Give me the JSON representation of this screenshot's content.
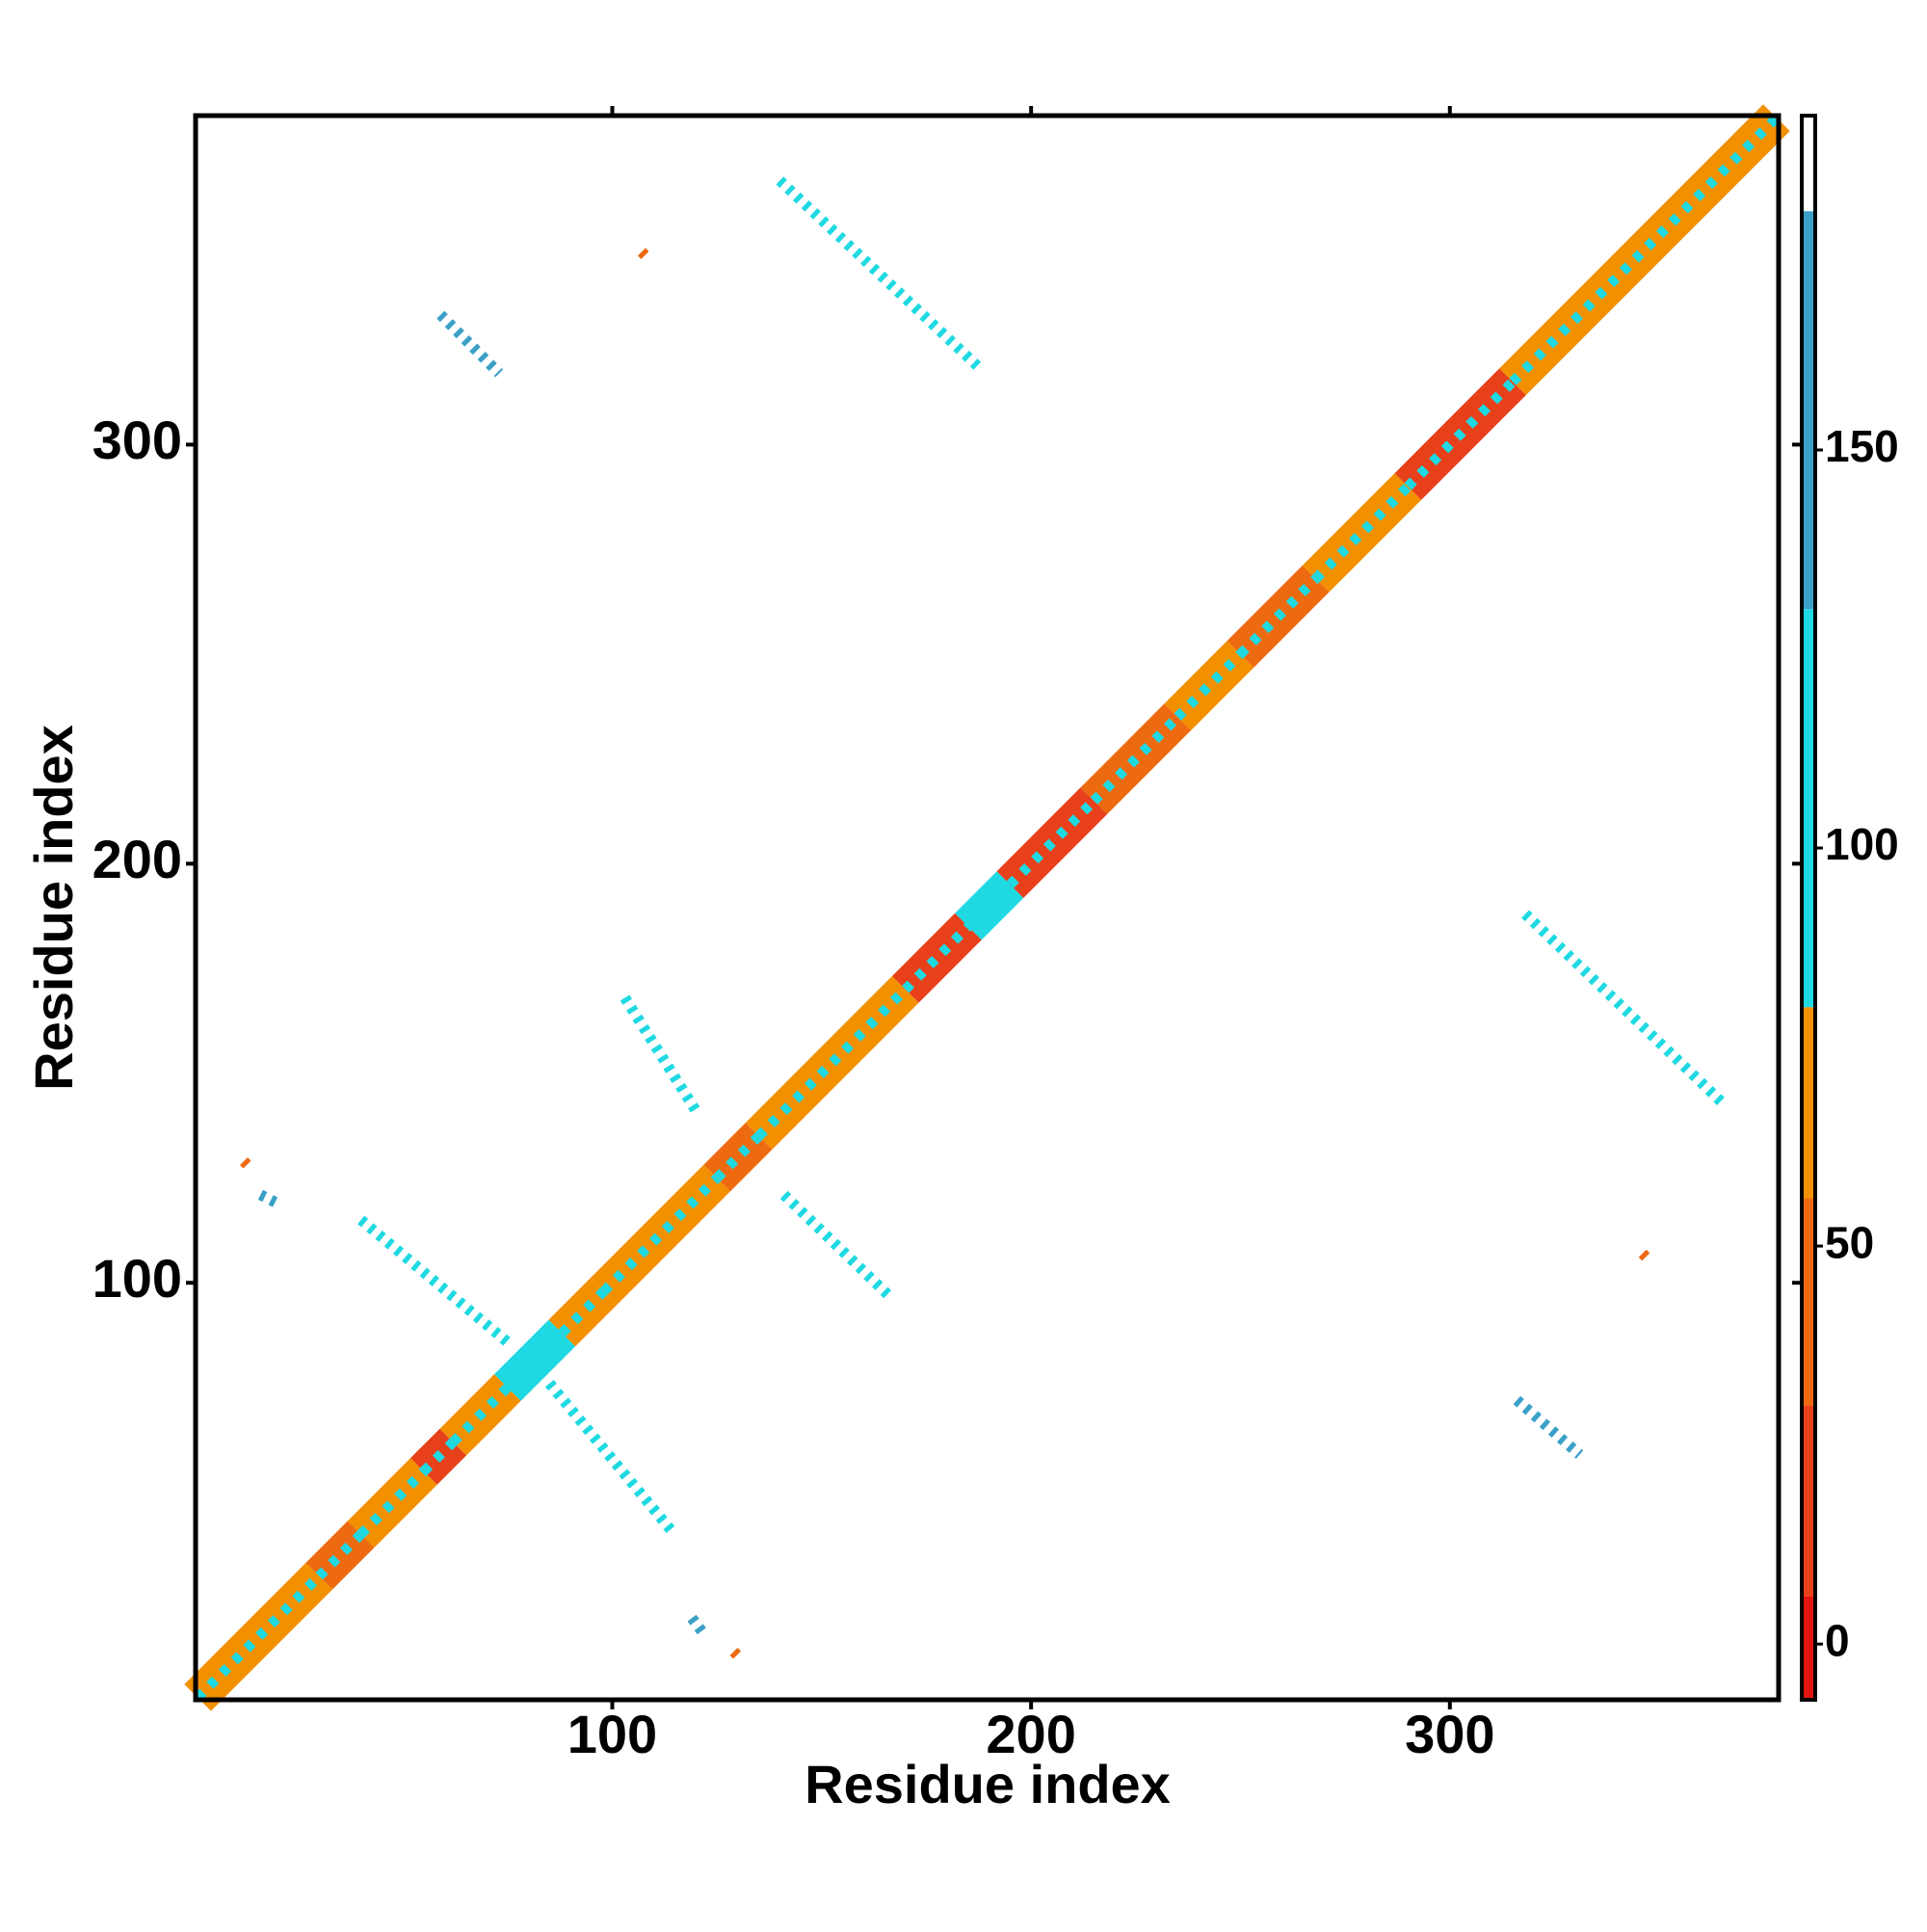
{
  "chart_data": {
    "type": "contact_map",
    "x_label": "Residue index",
    "y_label": "Residue index",
    "xlim": [
      0.5,
      378.5
    ],
    "ylim": [
      0.5,
      378.5
    ],
    "xticks": [
      100,
      200,
      300
    ],
    "yticks": [
      100,
      200,
      300
    ],
    "colorbar": {
      "lim": [
        -7,
        192
      ],
      "ticks": [
        0,
        50,
        100,
        150
      ],
      "bins": [
        -7,
        6,
        30,
        56,
        80,
        130,
        180,
        192
      ],
      "colors": [
        "#e0150e",
        "#e8401a",
        "#ee6a10",
        "#f29000",
        "#1fd9e2",
        "#3aa0c8",
        "#ffffff"
      ]
    },
    "diagonal": [
      {
        "from": 1,
        "to": 30,
        "value": 70
      },
      {
        "from": 30,
        "to": 40,
        "value": 40
      },
      {
        "from": 40,
        "to": 55,
        "value": 70
      },
      {
        "from": 55,
        "to": 62,
        "value": 20
      },
      {
        "from": 62,
        "to": 75,
        "value": 70
      },
      {
        "from": 75,
        "to": 88,
        "value": 100
      },
      {
        "from": 88,
        "to": 98,
        "value": 60
      },
      {
        "from": 98,
        "to": 125,
        "value": 70
      },
      {
        "from": 125,
        "to": 135,
        "value": 40
      },
      {
        "from": 135,
        "to": 170,
        "value": 70
      },
      {
        "from": 170,
        "to": 185,
        "value": 20
      },
      {
        "from": 185,
        "to": 195,
        "value": 90
      },
      {
        "from": 195,
        "to": 215,
        "value": 20
      },
      {
        "from": 215,
        "to": 235,
        "value": 40
      },
      {
        "from": 235,
        "to": 250,
        "value": 70
      },
      {
        "from": 250,
        "to": 268,
        "value": 30
      },
      {
        "from": 268,
        "to": 290,
        "value": 70
      },
      {
        "from": 290,
        "to": 315,
        "value": 10
      },
      {
        "from": 315,
        "to": 378,
        "value": 70
      }
    ],
    "contacts": [
      {
        "x": [
          140,
          188
        ],
        "y": [
          363,
          318
        ],
        "value": 95
      },
      {
        "x": [
          103,
          120
        ],
        "y": [
          168,
          141
        ],
        "value": 95
      },
      {
        "x": [
          40,
          76
        ],
        "y": [
          115,
          85
        ],
        "value": 95
      },
      {
        "x": [
          141,
          166
        ],
        "y": [
          121,
          97
        ],
        "value": 95
      },
      {
        "x": [
          85,
          114
        ],
        "y": [
          76,
          41
        ],
        "value": 95
      },
      {
        "x": [
          318,
          365
        ],
        "y": [
          188,
          143
        ],
        "value": 95
      },
      {
        "x": [
          59,
          73
        ],
        "y": [
          331,
          317
        ],
        "value": 130
      },
      {
        "x": [
          16,
          20
        ],
        "y": [
          121,
          119
        ],
        "value": 130
      },
      {
        "x": [
          119,
          122
        ],
        "y": [
          20,
          16
        ],
        "value": 130
      },
      {
        "x": [
          316,
          331
        ],
        "y": [
          72,
          59
        ],
        "value": 130
      },
      {
        "x": [
          107,
          108
        ],
        "y": [
          346,
          345
        ],
        "value": 55
      },
      {
        "x": [
          12,
          13
        ],
        "y": [
          129,
          128
        ],
        "value": 55
      },
      {
        "x": [
          129,
          130
        ],
        "y": [
          12,
          11
        ],
        "value": 55
      },
      {
        "x": [
          346,
          347
        ],
        "y": [
          107,
          106
        ],
        "value": 55
      }
    ]
  }
}
